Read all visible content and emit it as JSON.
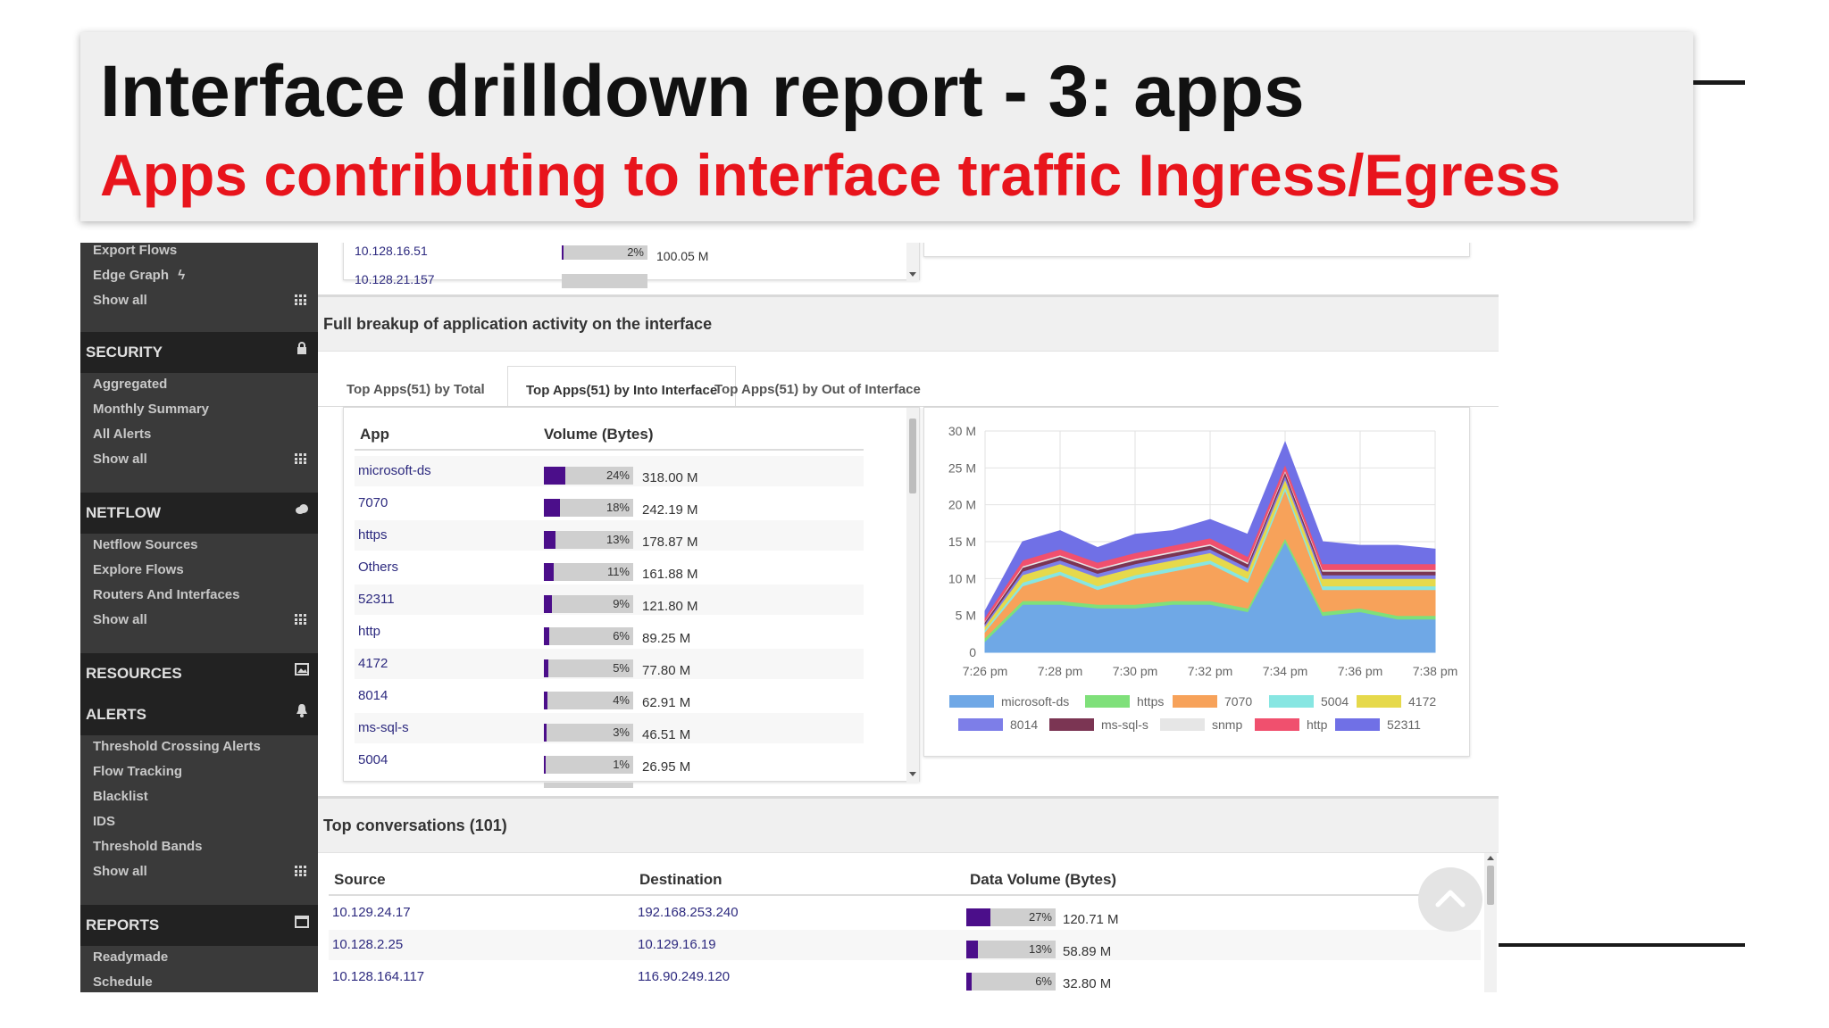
{
  "slide": {
    "title": "Interface drilldown report - 3:  apps",
    "subtitle": "Apps contributing to interface traffic Ingress/Egress",
    "subtitle_color": "#e8141c"
  },
  "sidebar": {
    "top_items": [
      "Export Flows",
      "Edge Graph",
      "Show all"
    ],
    "sections": [
      {
        "label": "SECURITY",
        "icon": "lock-icon",
        "items": [
          "Aggregated",
          "Monthly Summary",
          "All Alerts",
          "Show all"
        ]
      },
      {
        "label": "NETFLOW",
        "icon": "cloud-icon",
        "items": [
          "Netflow Sources",
          "Explore Flows",
          "Routers And Interfaces",
          "Show all"
        ]
      },
      {
        "label": "RESOURCES",
        "icon": "image-icon",
        "items": []
      },
      {
        "label": "ALERTS",
        "icon": "bell-icon",
        "items": [
          "Threshold Crossing Alerts",
          "Flow Tracking",
          "Blacklist",
          "IDS",
          "Threshold Bands",
          "Show all"
        ]
      },
      {
        "label": "REPORTS",
        "icon": "calendar-icon",
        "items": [
          "Readymade",
          "Schedule"
        ]
      }
    ]
  },
  "top_partial": {
    "ip1": "10.128.16.51",
    "pct1": "2%",
    "pct1_value": 2,
    "vol1": "100.05 M",
    "ip2": "10.128.21.157"
  },
  "apps_section": {
    "title": "Full breakup of application activity on the interface",
    "tabs": [
      "Top Apps(51) by Total",
      "Top Apps(51) by Into Interface",
      "Top Apps(51) by Out of Interface"
    ],
    "active_tab": 1,
    "columns": [
      "App",
      "Volume (Bytes)"
    ],
    "rows": [
      {
        "app": "microsoft-ds",
        "pct": "24%",
        "pct_value": 24,
        "volume": "318.00 M"
      },
      {
        "app": "7070",
        "pct": "18%",
        "pct_value": 18,
        "volume": "242.19 M"
      },
      {
        "app": "https",
        "pct": "13%",
        "pct_value": 13,
        "volume": "178.87 M"
      },
      {
        "app": "Others",
        "pct": "11%",
        "pct_value": 11,
        "volume": "161.88 M"
      },
      {
        "app": "52311",
        "pct": "9%",
        "pct_value": 9,
        "volume": "121.80 M"
      },
      {
        "app": "http",
        "pct": "6%",
        "pct_value": 6,
        "volume": "89.25 M"
      },
      {
        "app": "4172",
        "pct": "5%",
        "pct_value": 5,
        "volume": "77.80 M"
      },
      {
        "app": "8014",
        "pct": "4%",
        "pct_value": 4,
        "volume": "62.91 M"
      },
      {
        "app": "ms-sql-s",
        "pct": "3%",
        "pct_value": 3,
        "volume": "46.51 M"
      },
      {
        "app": "5004",
        "pct": "1%",
        "pct_value": 1,
        "volume": "26.95 M"
      }
    ]
  },
  "chart_data": {
    "type": "area",
    "stacked": true,
    "x": [
      "7:26 pm",
      "7:27 pm",
      "7:28 pm",
      "7:29 pm",
      "7:30 pm",
      "7:31 pm",
      "7:32 pm",
      "7:33 pm",
      "7:34 pm",
      "7:35 pm",
      "7:36 pm",
      "7:37 pm",
      "7:38 pm"
    ],
    "x_ticks": [
      "7:26 pm",
      "7:28 pm",
      "7:30 pm",
      "7:32 pm",
      "7:34 pm",
      "7:36 pm",
      "7:38 pm"
    ],
    "y_ticks": [
      "0",
      "5 M",
      "10 M",
      "15 M",
      "20 M",
      "25 M",
      "30 M"
    ],
    "ylim": [
      0,
      30
    ],
    "grid": true,
    "legend_position": "bottom",
    "series": [
      {
        "name": "microsoft-ds",
        "color": "#6fa8e6",
        "values": [
          1.5,
          6.5,
          6.5,
          6.0,
          6.0,
          6.5,
          6.5,
          5.5,
          15.0,
          5.0,
          5.5,
          4.5,
          4.5
        ]
      },
      {
        "name": "https",
        "color": "#7fe07a",
        "values": [
          0.5,
          0.5,
          0.5,
          0.5,
          0.5,
          0.5,
          0.5,
          0.5,
          0.5,
          0.5,
          0.5,
          0.5,
          0.5
        ]
      },
      {
        "name": "7070",
        "color": "#f7a25a",
        "values": [
          0.8,
          2.0,
          3.5,
          2.0,
          3.5,
          4.0,
          5.0,
          3.5,
          6.5,
          3.0,
          2.5,
          3.5,
          3.5
        ]
      },
      {
        "name": "5004",
        "color": "#87e6e2",
        "values": [
          0.3,
          0.5,
          0.5,
          0.5,
          0.5,
          0.5,
          0.5,
          0.5,
          0.5,
          0.5,
          0.5,
          0.5,
          0.5
        ]
      },
      {
        "name": "4172",
        "color": "#e6d94b",
        "values": [
          0.5,
          1.0,
          1.0,
          1.2,
          1.0,
          1.0,
          1.0,
          1.0,
          1.0,
          1.0,
          1.0,
          1.0,
          1.0
        ]
      },
      {
        "name": "8014",
        "color": "#7d7ee8",
        "values": [
          0.3,
          0.5,
          0.5,
          0.5,
          0.5,
          0.5,
          0.5,
          0.5,
          0.5,
          0.5,
          0.5,
          0.5,
          0.5
        ]
      },
      {
        "name": "ms-sql-s",
        "color": "#7b3553",
        "values": [
          0.3,
          0.5,
          0.5,
          0.5,
          0.5,
          0.5,
          0.5,
          0.5,
          0.5,
          0.5,
          0.5,
          0.5,
          0.5
        ]
      },
      {
        "name": "snmp",
        "color": "#e6e6e6",
        "values": [
          0.1,
          0.2,
          0.2,
          0.2,
          0.2,
          0.2,
          0.2,
          0.2,
          0.2,
          0.2,
          0.2,
          0.2,
          0.2
        ]
      },
      {
        "name": "http",
        "color": "#f0506e",
        "values": [
          0.5,
          0.8,
          0.8,
          0.8,
          0.8,
          0.8,
          0.8,
          0.8,
          0.8,
          0.8,
          0.8,
          0.8,
          0.8
        ]
      },
      {
        "name": "52311",
        "color": "#7070e6",
        "values": [
          0.8,
          2.5,
          2.5,
          2.0,
          2.5,
          2.0,
          2.5,
          3.0,
          3.0,
          3.0,
          2.5,
          2.5,
          2.0
        ]
      }
    ]
  },
  "conversations": {
    "title": "Top conversations (101)",
    "columns": [
      "Source",
      "Destination",
      "Data Volume (Bytes)"
    ],
    "rows": [
      {
        "source": "10.129.24.17",
        "destination": "192.168.253.240",
        "pct": "27%",
        "pct_value": 27,
        "volume": "120.71 M"
      },
      {
        "source": "10.128.2.25",
        "destination": "10.129.16.19",
        "pct": "13%",
        "pct_value": 13,
        "volume": "58.89 M"
      },
      {
        "source": "10.128.164.117",
        "destination": "116.90.249.120",
        "pct": "6%",
        "pct_value": 6,
        "volume": "32.80 M"
      }
    ]
  },
  "colors": {
    "sidebar_bg": "#3a3a3a",
    "sidebar_header_bg": "#222222",
    "bar_fill": "#4b0e8a",
    "link": "#2d2a7f"
  }
}
